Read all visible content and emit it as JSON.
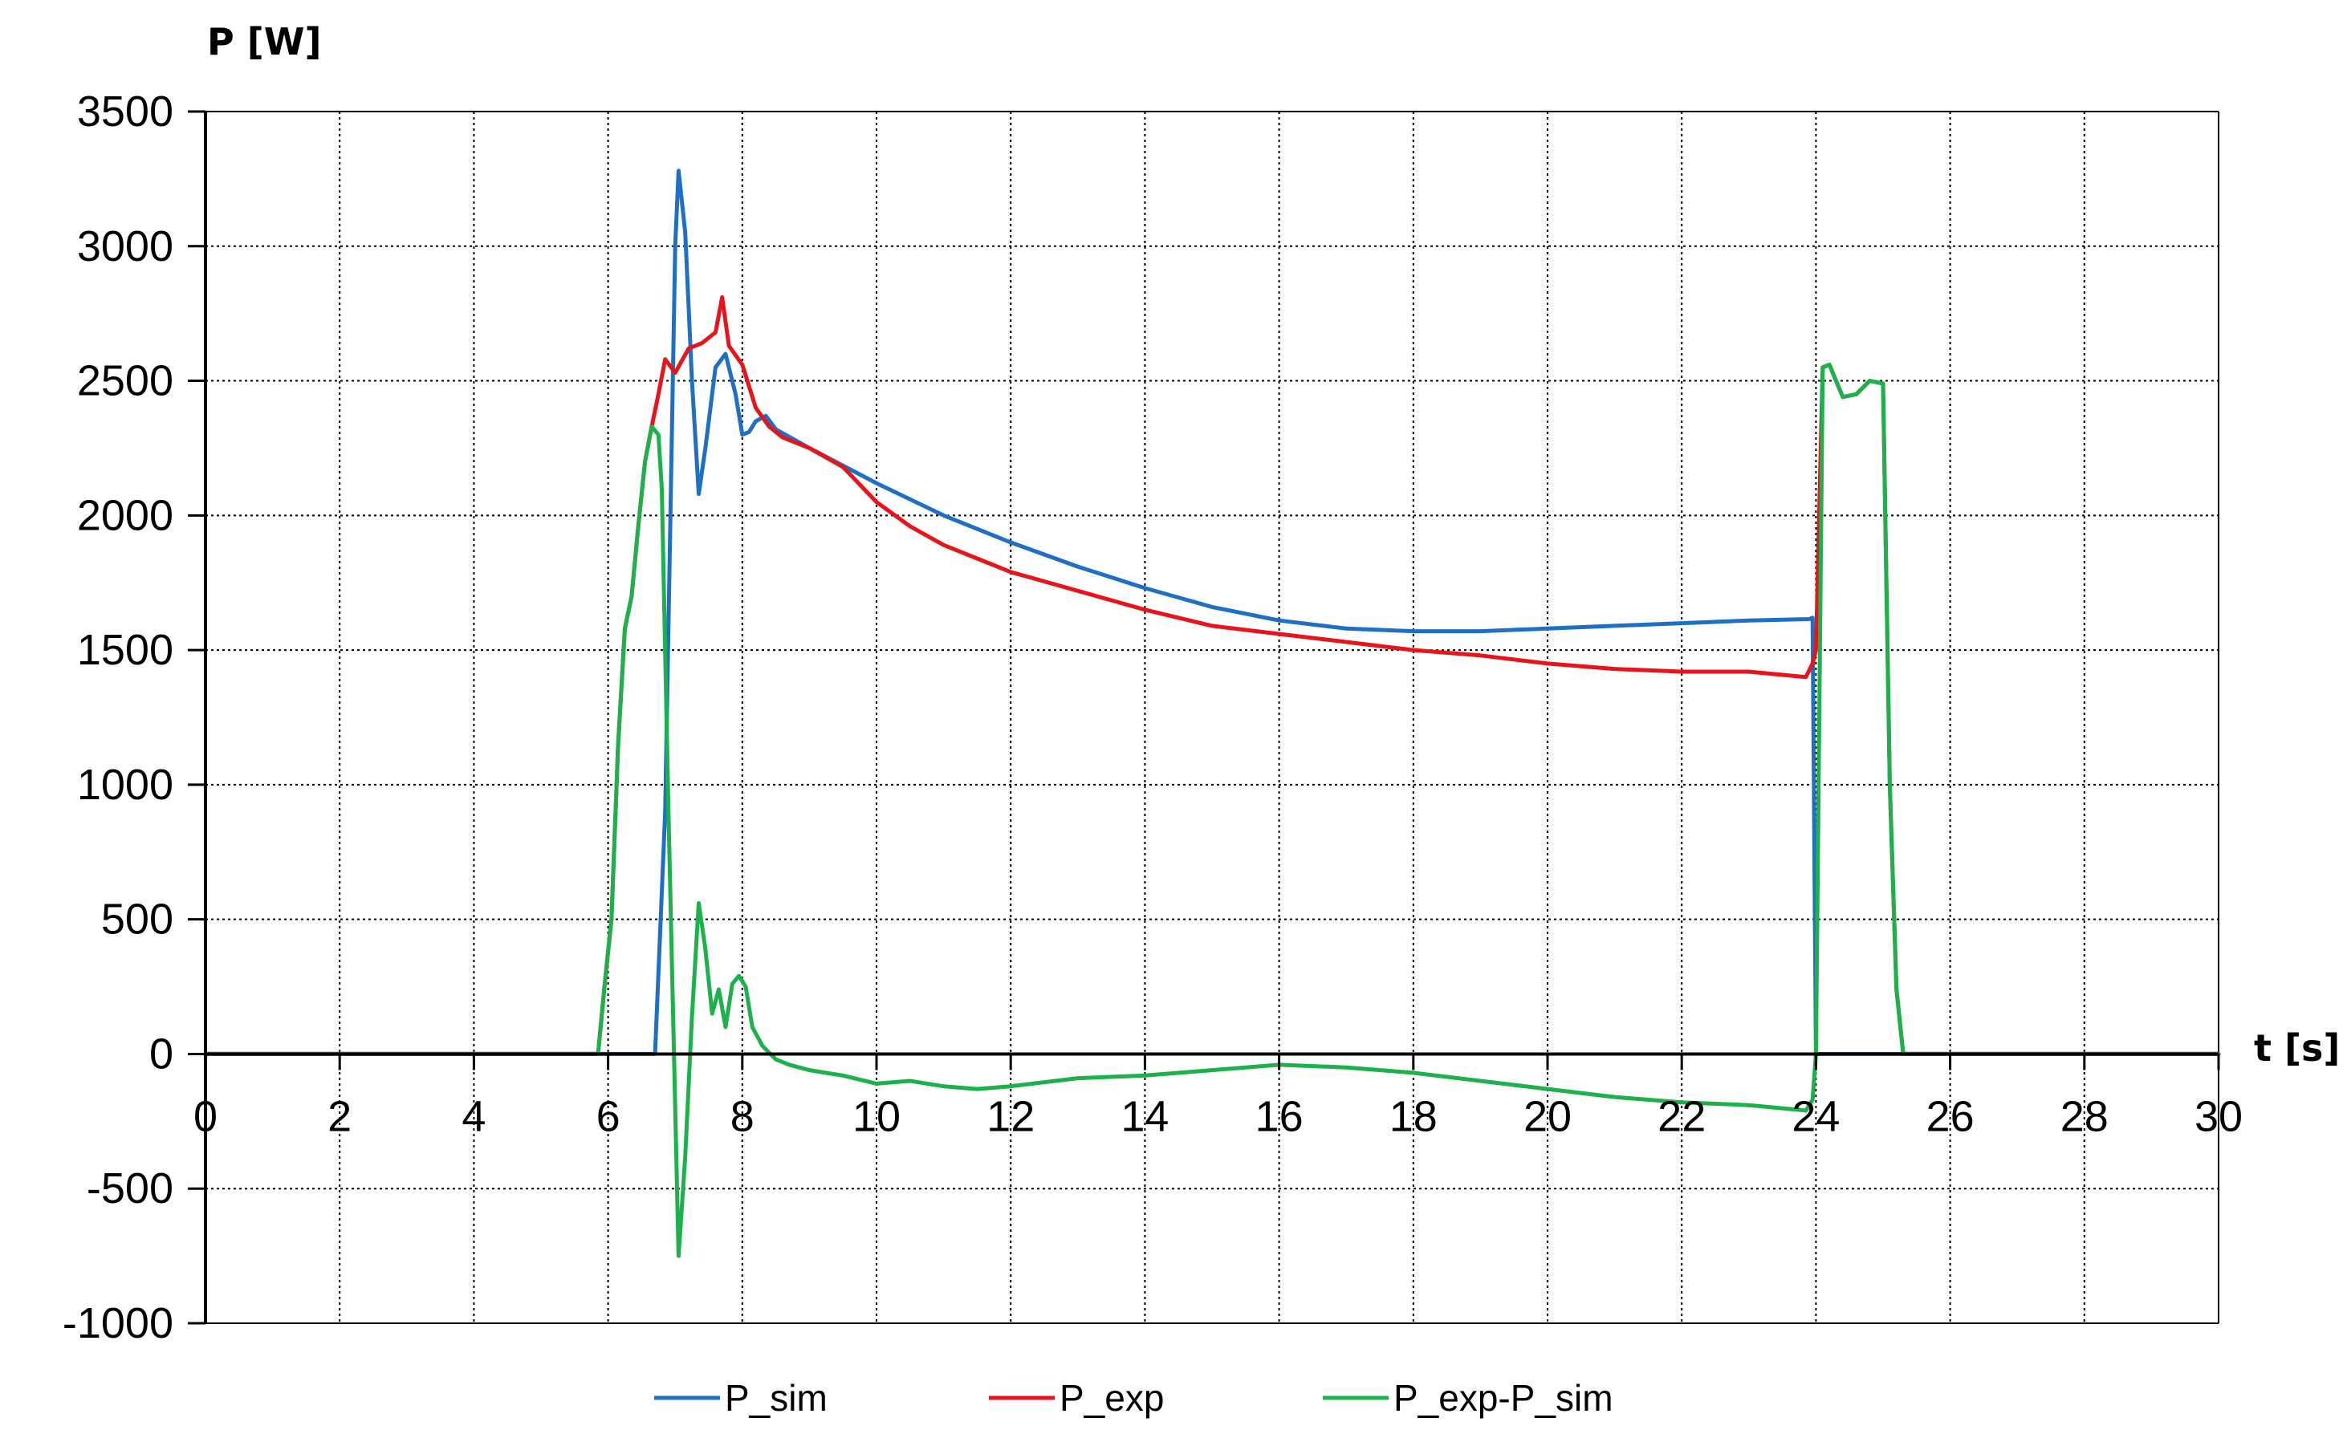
{
  "chart_data": {
    "type": "line",
    "title": "",
    "xlabel": "t [s]",
    "ylabel": "P [W]",
    "xlim": [
      0,
      30
    ],
    "ylim": [
      -1000,
      3500
    ],
    "x_ticks": [
      0,
      2,
      4,
      6,
      8,
      10,
      12,
      14,
      16,
      18,
      20,
      22,
      24,
      26,
      28,
      30
    ],
    "y_ticks": [
      -1000,
      -500,
      0,
      500,
      1000,
      1500,
      2000,
      2500,
      3000,
      3500
    ],
    "grid": true,
    "legend_position": "bottom",
    "series": [
      {
        "name": "P_sim",
        "color": "#1F6FC5",
        "x": [
          0,
          6.7,
          6.85,
          7.0,
          7.05,
          7.15,
          7.25,
          7.35,
          7.45,
          7.6,
          7.75,
          7.9,
          8.0,
          8.1,
          8.2,
          8.35,
          8.5,
          9,
          10,
          11,
          12,
          13,
          14,
          15,
          16,
          17,
          18,
          19,
          20,
          21,
          22,
          23,
          23.9,
          23.95,
          24.0,
          25.3,
          30
        ],
        "y": [
          0,
          0,
          900,
          3000,
          3280,
          3050,
          2500,
          2080,
          2250,
          2550,
          2600,
          2450,
          2300,
          2310,
          2350,
          2370,
          2320,
          2250,
          2120,
          2000,
          1900,
          1810,
          1730,
          1660,
          1610,
          1580,
          1570,
          1570,
          1580,
          1590,
          1600,
          1610,
          1615,
          1620,
          0,
          0,
          0
        ]
      },
      {
        "name": "P_exp",
        "color": "#E8141B",
        "x": [
          0,
          5.85,
          5.95,
          6.05,
          6.15,
          6.25,
          6.35,
          6.45,
          6.55,
          6.65,
          6.75,
          6.85,
          7.0,
          7.2,
          7.4,
          7.6,
          7.7,
          7.8,
          8.0,
          8.2,
          8.4,
          8.6,
          9,
          9.5,
          10,
          10.5,
          11,
          11.5,
          12,
          13,
          14,
          15,
          16,
          17,
          18,
          19,
          20,
          21,
          22,
          23,
          23.85,
          23.95,
          24.0,
          24.1,
          24.2,
          24.4,
          24.6,
          24.8,
          25.0,
          25.1,
          25.2,
          25.3,
          30
        ],
        "y": [
          0,
          0,
          260,
          500,
          1150,
          1580,
          1700,
          1960,
          2200,
          2330,
          2450,
          2580,
          2530,
          2620,
          2640,
          2680,
          2810,
          2630,
          2560,
          2400,
          2330,
          2290,
          2250,
          2180,
          2050,
          1960,
          1890,
          1840,
          1790,
          1720,
          1650,
          1590,
          1560,
          1530,
          1500,
          1480,
          1450,
          1430,
          1420,
          1420,
          1400,
          1450,
          1500,
          2550,
          2560,
          2440,
          2450,
          2500,
          2490,
          1000,
          240,
          0,
          0
        ]
      },
      {
        "name": "P_exp-P_sim",
        "color": "#1DB14B",
        "x": [
          0,
          5.85,
          5.95,
          6.05,
          6.15,
          6.25,
          6.35,
          6.45,
          6.55,
          6.65,
          6.75,
          6.8,
          6.9,
          7.0,
          7.05,
          7.15,
          7.25,
          7.35,
          7.45,
          7.55,
          7.65,
          7.75,
          7.85,
          7.95,
          8.05,
          8.15,
          8.3,
          8.5,
          8.7,
          9,
          9.5,
          10,
          10.5,
          11,
          11.5,
          12,
          13,
          14,
          15,
          16,
          17,
          18,
          19,
          20,
          21,
          22,
          23,
          23.85,
          23.95,
          24.0,
          24.1,
          24.2,
          24.4,
          24.6,
          24.8,
          25.0,
          25.1,
          25.2,
          25.3,
          30
        ],
        "y": [
          0,
          0,
          260,
          500,
          1150,
          1580,
          1700,
          1960,
          2200,
          2330,
          2300,
          2100,
          900,
          -200,
          -750,
          -380,
          140,
          560,
          390,
          150,
          240,
          100,
          260,
          290,
          250,
          100,
          30,
          -20,
          -40,
          -60,
          -80,
          -110,
          -100,
          -120,
          -130,
          -120,
          -90,
          -80,
          -60,
          -40,
          -50,
          -70,
          -100,
          -130,
          -160,
          -180,
          -190,
          -210,
          -170,
          0,
          2550,
          2560,
          2440,
          2450,
          2500,
          2490,
          1000,
          240,
          0,
          0
        ]
      }
    ]
  }
}
